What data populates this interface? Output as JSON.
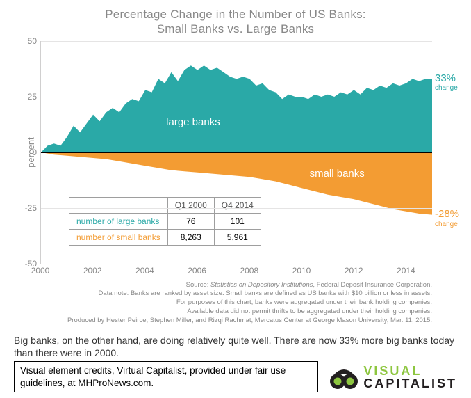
{
  "chart": {
    "type": "area",
    "title_line1": "Percentage Change in the Number of US Banks:",
    "title_line2": "Small Banks vs. Large Banks",
    "ylabel": "percent",
    "background_color": "#ffffff",
    "grid_color": "#e5e4e4",
    "axis_color": "#d0cfcf",
    "zero_line_color": "#000000",
    "tick_color": "#888888",
    "title_color": "#888888",
    "title_fontsize": 17,
    "label_fontsize": 13,
    "tick_fontsize": 12,
    "ylim": [
      -50,
      50
    ],
    "yticks": [
      -50,
      -25,
      0,
      25,
      50
    ],
    "xlim": [
      2000,
      2015
    ],
    "xticks": [
      2000,
      2002,
      2004,
      2006,
      2008,
      2010,
      2012,
      2014
    ],
    "series": {
      "large": {
        "label": "large banks",
        "color": "#2aa9a7",
        "end_value": "33%",
        "end_sub": "change",
        "end_color": "#2aa9a7",
        "data": [
          [
            2000.0,
            0
          ],
          [
            2000.25,
            3
          ],
          [
            2000.5,
            4
          ],
          [
            2000.75,
            3
          ],
          [
            2001.0,
            7
          ],
          [
            2001.25,
            12
          ],
          [
            2001.5,
            9
          ],
          [
            2001.75,
            13
          ],
          [
            2002.0,
            17
          ],
          [
            2002.25,
            14
          ],
          [
            2002.5,
            18
          ],
          [
            2002.75,
            20
          ],
          [
            2003.0,
            18
          ],
          [
            2003.25,
            22
          ],
          [
            2003.5,
            24
          ],
          [
            2003.75,
            23
          ],
          [
            2004.0,
            28
          ],
          [
            2004.25,
            27
          ],
          [
            2004.5,
            33
          ],
          [
            2004.75,
            31
          ],
          [
            2005.0,
            36
          ],
          [
            2005.25,
            32
          ],
          [
            2005.5,
            37
          ],
          [
            2005.75,
            39
          ],
          [
            2006.0,
            37
          ],
          [
            2006.25,
            39
          ],
          [
            2006.5,
            37
          ],
          [
            2006.75,
            38
          ],
          [
            2007.0,
            36
          ],
          [
            2007.25,
            34
          ],
          [
            2007.5,
            33
          ],
          [
            2007.75,
            34
          ],
          [
            2008.0,
            33
          ],
          [
            2008.25,
            30
          ],
          [
            2008.5,
            31
          ],
          [
            2008.75,
            28
          ],
          [
            2009.0,
            27
          ],
          [
            2009.25,
            24
          ],
          [
            2009.5,
            26
          ],
          [
            2009.75,
            25
          ],
          [
            2010.0,
            25
          ],
          [
            2010.25,
            24
          ],
          [
            2010.5,
            26
          ],
          [
            2010.75,
            25
          ],
          [
            2011.0,
            26
          ],
          [
            2011.25,
            25
          ],
          [
            2011.5,
            27
          ],
          [
            2011.75,
            26
          ],
          [
            2012.0,
            28
          ],
          [
            2012.25,
            26
          ],
          [
            2012.5,
            29
          ],
          [
            2012.75,
            28
          ],
          [
            2013.0,
            30
          ],
          [
            2013.25,
            29
          ],
          [
            2013.5,
            31
          ],
          [
            2013.75,
            30
          ],
          [
            2014.0,
            31
          ],
          [
            2014.25,
            33
          ],
          [
            2014.5,
            32
          ],
          [
            2014.75,
            33
          ],
          [
            2015.0,
            33
          ]
        ]
      },
      "small": {
        "label": "small banks",
        "color": "#f39c33",
        "end_value": "-28%",
        "end_sub": "change",
        "end_color": "#f39c33",
        "data": [
          [
            2000.0,
            0
          ],
          [
            2000.5,
            -1
          ],
          [
            2001.0,
            -1.5
          ],
          [
            2001.5,
            -2
          ],
          [
            2002.0,
            -2.5
          ],
          [
            2002.5,
            -3
          ],
          [
            2003.0,
            -4
          ],
          [
            2003.5,
            -5
          ],
          [
            2004.0,
            -6
          ],
          [
            2004.5,
            -7
          ],
          [
            2005.0,
            -8
          ],
          [
            2005.5,
            -8.5
          ],
          [
            2006.0,
            -9
          ],
          [
            2006.5,
            -9.5
          ],
          [
            2007.0,
            -10
          ],
          [
            2007.5,
            -10.5
          ],
          [
            2008.0,
            -11
          ],
          [
            2008.5,
            -12
          ],
          [
            2009.0,
            -13
          ],
          [
            2009.5,
            -14.5
          ],
          [
            2010.0,
            -16
          ],
          [
            2010.5,
            -17.5
          ],
          [
            2011.0,
            -19
          ],
          [
            2011.5,
            -20
          ],
          [
            2012.0,
            -21
          ],
          [
            2012.5,
            -22.5
          ],
          [
            2013.0,
            -24
          ],
          [
            2013.5,
            -25.5
          ],
          [
            2014.0,
            -26.5
          ],
          [
            2014.5,
            -27.5
          ],
          [
            2015.0,
            -28
          ]
        ]
      }
    },
    "inset_table": {
      "columns": [
        "",
        "Q1 2000",
        "Q4 2014"
      ],
      "rows": [
        {
          "label": "number of large banks",
          "color": "#2aa9a7",
          "cells": [
            "76",
            "101"
          ]
        },
        {
          "label": "number of small banks",
          "color": "#f39c33",
          "cells": [
            "8,263",
            "5,961"
          ]
        }
      ]
    },
    "footnotes": [
      "Source: Statistics on Depository Institutions, Federal Deposit Insurance Corporation.",
      "Data note: Banks are ranked by asset size. Small banks are defined as US banks with $10 billion or less in assets.",
      "For purposes of this chart, banks were aggregated under their bank holding companies.",
      "Available data did not permit thrifts to be aggregated under their holding companies.",
      "Produced by Hester Peirce, Stephen Miller, and Rizqi Rachmat, Mercatus Center at George Mason University, Mar. 11, 2015."
    ]
  },
  "caption": "Big banks, on the other hand, are doing relatively quite well. There are now 33% more big banks today than there were in 2000.",
  "credits_box": "Visual element credits, Virtual Capitalist, provided under fair use guidelines, at MHProNews.com.",
  "logo": {
    "line1": "VISUAL",
    "line2": "CAPITALIST",
    "icon_color": "#231f20",
    "accent_color": "#8dc63f"
  }
}
